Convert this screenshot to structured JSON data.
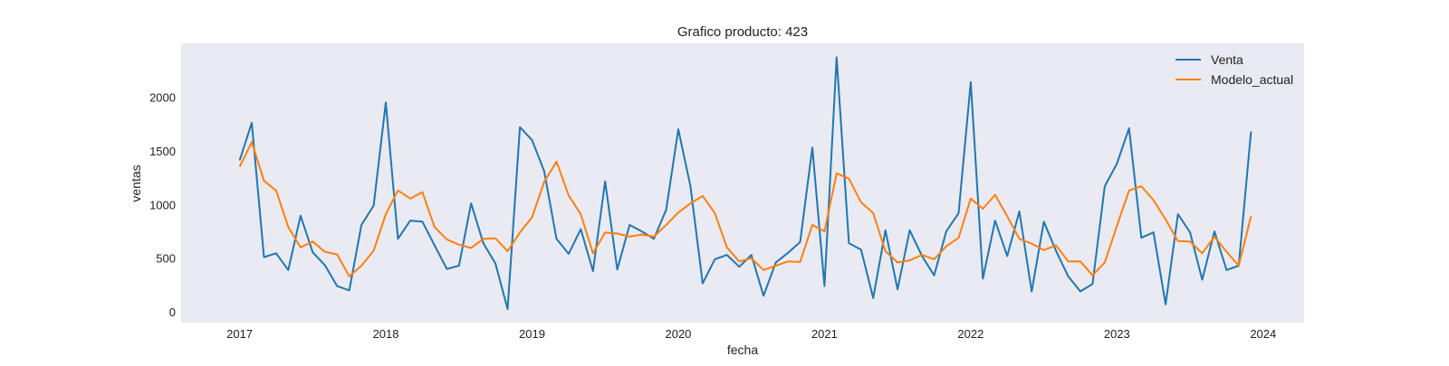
{
  "chart_data": {
    "type": "line",
    "title": "Grafico producto: 423",
    "xlabel": "fecha",
    "ylabel": "ventas",
    "x_tick_labels": [
      "2017",
      "2018",
      "2019",
      "2020",
      "2021",
      "2022",
      "2023",
      "2024"
    ],
    "y_tick_labels": [
      "0",
      "500",
      "1000",
      "1500",
      "2000"
    ],
    "y_ticks": [
      0,
      500,
      1000,
      1500,
      2000
    ],
    "xlim": [
      2016.6,
      2024.28
    ],
    "ylim": [
      -100,
      2500
    ],
    "grid": false,
    "legend_position": "top-right",
    "x": [
      2017.0,
      2017.083,
      2017.167,
      2017.25,
      2017.333,
      2017.417,
      2017.5,
      2017.583,
      2017.667,
      2017.75,
      2017.833,
      2017.917,
      2018.0,
      2018.083,
      2018.167,
      2018.25,
      2018.333,
      2018.417,
      2018.5,
      2018.583,
      2018.667,
      2018.75,
      2018.833,
      2018.917,
      2019.0,
      2019.083,
      2019.167,
      2019.25,
      2019.333,
      2019.417,
      2019.5,
      2019.583,
      2019.667,
      2019.75,
      2019.833,
      2019.917,
      2020.0,
      2020.083,
      2020.167,
      2020.25,
      2020.333,
      2020.417,
      2020.5,
      2020.583,
      2020.667,
      2020.75,
      2020.833,
      2020.917,
      2021.0,
      2021.083,
      2021.167,
      2021.25,
      2021.333,
      2021.417,
      2021.5,
      2021.583,
      2021.667,
      2021.75,
      2021.833,
      2021.917,
      2022.0,
      2022.083,
      2022.167,
      2022.25,
      2022.333,
      2022.417,
      2022.5,
      2022.583,
      2022.667,
      2022.75,
      2022.833,
      2022.917,
      2023.0,
      2023.083,
      2023.167,
      2023.25,
      2023.333,
      2023.417,
      2023.5,
      2023.583,
      2023.667,
      2023.75,
      2023.833,
      2023.917
    ],
    "series": [
      {
        "name": "Venta",
        "color": "#1f77b4",
        "values": [
          1410,
          1760,
          510,
          545,
          390,
          895,
          555,
          435,
          240,
          200,
          810,
          990,
          1950,
          680,
          850,
          840,
          620,
          400,
          430,
          1010,
          640,
          450,
          25,
          1720,
          1600,
          1310,
          680,
          540,
          770,
          380,
          1215,
          395,
          810,
          750,
          680,
          950,
          1700,
          1170,
          265,
          490,
          530,
          420,
          530,
          150,
          460,
          550,
          650,
          1530,
          240,
          2370,
          640,
          580,
          130,
          760,
          210,
          760,
          520,
          340,
          750,
          920,
          2140,
          310,
          850,
          520,
          935,
          190,
          840,
          570,
          330,
          190,
          260,
          1170,
          1380,
          1710,
          690,
          740,
          70,
          910,
          740,
          300,
          750,
          390,
          430,
          1680
        ]
      },
      {
        "name": "Modelo_actual",
        "color": "#ff7f0e",
        "values": [
          1350,
          1580,
          1220,
          1130,
          790,
          600,
          655,
          560,
          535,
          330,
          430,
          570,
          910,
          1130,
          1055,
          1115,
          790,
          675,
          625,
          595,
          680,
          685,
          565,
          740,
          880,
          1210,
          1400,
          1085,
          910,
          545,
          740,
          730,
          700,
          720,
          700,
          810,
          925,
          1010,
          1080,
          920,
          600,
          470,
          500,
          390,
          430,
          470,
          465,
          810,
          750,
          1290,
          1240,
          1020,
          920,
          565,
          460,
          480,
          530,
          490,
          610,
          690,
          1055,
          960,
          1090,
          890,
          680,
          635,
          575,
          620,
          470,
          470,
          340,
          460,
          800,
          1130,
          1170,
          1040,
          860,
          660,
          655,
          545,
          700,
          560,
          430,
          890
        ]
      }
    ]
  }
}
